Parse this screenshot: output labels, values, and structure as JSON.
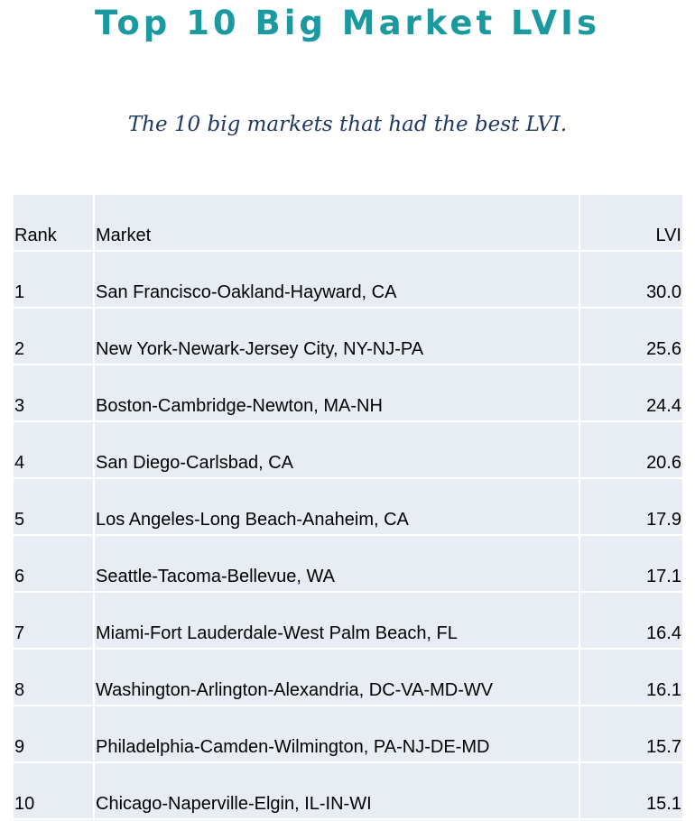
{
  "colors": {
    "title": "#1a9aa0",
    "subtitle": "#1f3864",
    "table_background": "#e8ecf3"
  },
  "title": "Top 10 Big Market LVIs",
  "subtitle": "The 10 big markets that had the best LVI.",
  "table": {
    "headers": [
      "Rank",
      "Market",
      "LVI"
    ],
    "rows": [
      [
        "1",
        "San Francisco-Oakland-Hayward, CA",
        "30.0"
      ],
      [
        "2",
        "New York-Newark-Jersey City, NY-NJ-PA",
        "25.6"
      ],
      [
        "3",
        "Boston-Cambridge-Newton, MA-NH",
        "24.4"
      ],
      [
        "4",
        "San Diego-Carlsbad, CA",
        "20.6"
      ],
      [
        "5",
        "Los Angeles-Long Beach-Anaheim, CA",
        "17.9"
      ],
      [
        "6",
        "Seattle-Tacoma-Bellevue, WA",
        "17.1"
      ],
      [
        "7",
        "Miami-Fort Lauderdale-West Palm Beach, FL",
        "16.4"
      ],
      [
        "8",
        "Washington-Arlington-Alexandria, DC-VA-MD-WV",
        "16.1"
      ],
      [
        "9",
        "Philadelphia-Camden-Wilmington, PA-NJ-DE-MD",
        "15.7"
      ],
      [
        "10",
        "Chicago-Naperville-Elgin, IL-IN-WI",
        "15.1"
      ]
    ]
  }
}
